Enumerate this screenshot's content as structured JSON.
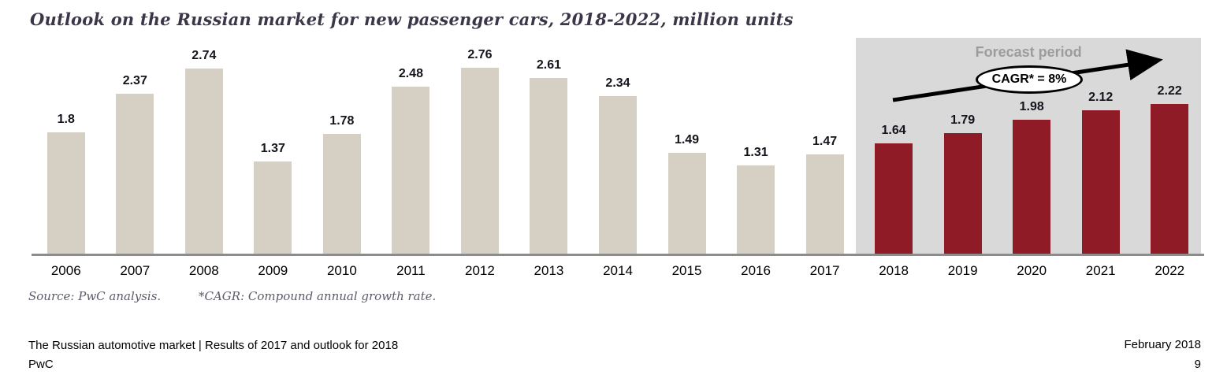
{
  "page": {
    "title": "Outlook on the Russian market for new passenger cars, 2018-2022, million units",
    "source_note": "Source: PwC analysis.",
    "cagr_footnote": "*CAGR: Compound annual growth rate.",
    "footer": {
      "left_line1": "The Russian automotive market | Results of 2017 and outlook for 2018",
      "left_line2": "PwC",
      "right_line1": "February 2018",
      "page_number": "9"
    }
  },
  "chart_data": {
    "type": "bar",
    "title": "Outlook on the Russian market for new passenger cars, 2018-2022, million units",
    "units": "million units",
    "categories": [
      "2006",
      "2007",
      "2008",
      "2009",
      "2010",
      "2011",
      "2012",
      "2013",
      "2014",
      "2015",
      "2016",
      "2017",
      "2018",
      "2019",
      "2020",
      "2021",
      "2022"
    ],
    "values": [
      1.8,
      2.37,
      2.74,
      1.37,
      1.78,
      2.48,
      2.76,
      2.61,
      2.34,
      1.49,
      1.31,
      1.47,
      1.64,
      1.79,
      1.98,
      2.12,
      2.22
    ],
    "forecast_start": "2018",
    "annotations": {
      "forecast_label": "Forecast period",
      "cagr_label": "CAGR* = 8%"
    },
    "colors": {
      "actual_bar": "#d6d0c4",
      "forecast_bar": "#8e1b25",
      "forecast_background": "#d9d9d9",
      "axis_line": "#8c8c8c",
      "arrow": "#000000"
    },
    "xlabel": "",
    "ylabel": "",
    "ylim": [
      0,
      3.2
    ],
    "grid": false,
    "legend": false,
    "value_labels": true
  }
}
